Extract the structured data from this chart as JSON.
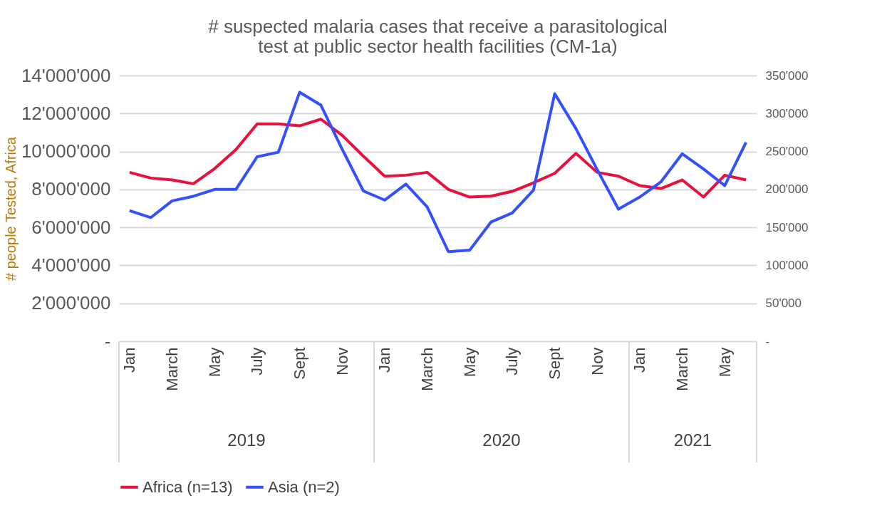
{
  "chart_data": {
    "type": "line",
    "title": "# suspected malaria cases that receive a parasitological test at public sector health facilities (CM-1a)",
    "ylabel": "# people Tested, Africa",
    "categories": [
      "Jan",
      null,
      "March",
      null,
      "May",
      null,
      "July",
      null,
      "Sept",
      null,
      "Nov",
      null,
      "Jan",
      null,
      "March",
      null,
      "May",
      null,
      "July",
      null,
      "Sept",
      null,
      "Nov",
      null,
      "Jan",
      null,
      "March",
      null,
      "May",
      null
    ],
    "annotations": [
      "2019",
      "2020",
      "2021"
    ],
    "series": [
      {
        "name": "Africa (n=13)",
        "color": "#e8103c",
        "values": [
          8900000,
          8600000,
          8500000,
          8300000,
          9100000,
          10100000,
          11450000,
          11450000,
          11350000,
          11700000,
          10850000,
          9750000,
          8700000,
          8750000,
          8900000,
          8000000,
          7600000,
          7650000,
          7900000,
          8350000,
          8850000,
          9900000,
          8900000,
          8700000,
          8200000,
          8050000,
          8500000,
          7600000,
          8750000,
          8500000
        ]
      },
      {
        "name": "Asia (n=2)",
        "color": "#3350ff",
        "axis": "y2",
        "values": [
          172000,
          163000,
          185000,
          191000,
          200000,
          200000,
          243000,
          249000,
          328000,
          311000,
          253000,
          198000,
          186000,
          207000,
          177000,
          118000,
          120000,
          157000,
          169000,
          199000,
          326000,
          280000,
          226000,
          174000,
          190000,
          210000,
          247000,
          227000,
          205000,
          262000
        ]
      }
    ],
    "ylim": [
      0,
      14000000
    ],
    "yticks": [
      {
        "value": 0,
        "label": "-"
      },
      {
        "value": 2000000,
        "label": "2'000'000"
      },
      {
        "value": 4000000,
        "label": "4'000'000"
      },
      {
        "value": 6000000,
        "label": "6'000'000"
      },
      {
        "value": 8000000,
        "label": "8'000'000"
      },
      {
        "value": 10000000,
        "label": "10'000'000"
      },
      {
        "value": 12000000,
        "label": "12'000'000"
      },
      {
        "value": 14000000,
        "label": "14'000'000"
      }
    ],
    "y2lim": [
      0,
      350000
    ],
    "y2ticks": [
      {
        "value": 0,
        "label": "-"
      },
      {
        "value": 50000,
        "label": "50'000"
      },
      {
        "value": 100000,
        "label": "100'000"
      },
      {
        "value": 150000,
        "label": "150'000"
      },
      {
        "value": 200000,
        "label": "200'000"
      },
      {
        "value": 250000,
        "label": "250'000"
      },
      {
        "value": 300000,
        "label": "300'000"
      },
      {
        "value": 350000,
        "label": "350'000"
      }
    ],
    "grid": "y",
    "legend": "bottom",
    "marker": "none",
    "line_style": "solid"
  }
}
